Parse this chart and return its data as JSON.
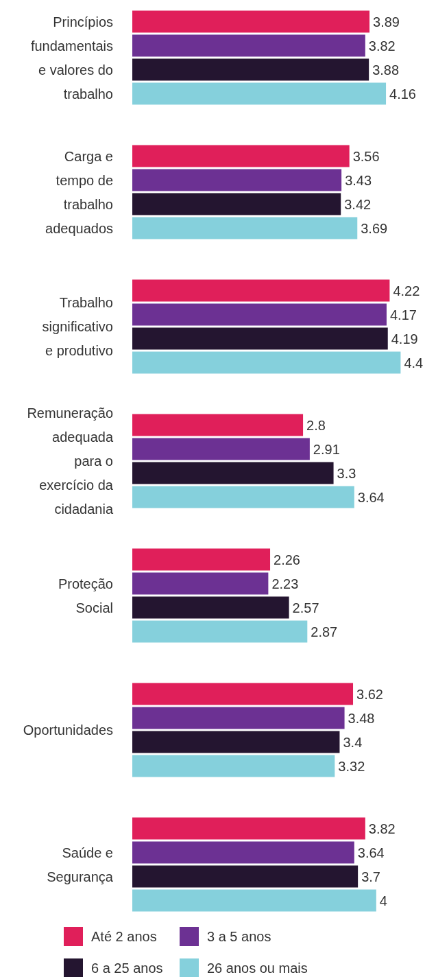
{
  "chart_data": {
    "type": "bar",
    "orientation": "horizontal",
    "categories": [
      "Princípios fundamentais e valores do trabalho",
      "Carga e tempo de trabalho adequados",
      "Trabalho significativo e produtivo",
      "Remuneração adequada para o exercício da cidadania",
      "Proteção Social",
      "Oportunidades",
      "Saúde e Segurança"
    ],
    "series": [
      {
        "name": "Até 2 anos",
        "color": "#e01f5a",
        "values": [
          3.89,
          3.56,
          4.22,
          2.8,
          2.26,
          3.62,
          3.82
        ]
      },
      {
        "name": "3 a 5 anos",
        "color": "#6c3193",
        "values": [
          3.82,
          3.43,
          4.17,
          2.91,
          2.23,
          3.48,
          3.64
        ]
      },
      {
        "name": "6 a 25 anos",
        "color": "#241530",
        "values": [
          3.88,
          3.42,
          4.19,
          3.3,
          2.57,
          3.4,
          3.7
        ]
      },
      {
        "name": "26 anos ou mais",
        "color": "#85d0dc",
        "values": [
          4.16,
          3.69,
          4.4,
          3.64,
          2.87,
          3.32,
          4
        ]
      }
    ],
    "xlim": [
      0,
      4.8
    ],
    "tick_labels": "y",
    "data_labels": true,
    "legend": "bottom"
  }
}
